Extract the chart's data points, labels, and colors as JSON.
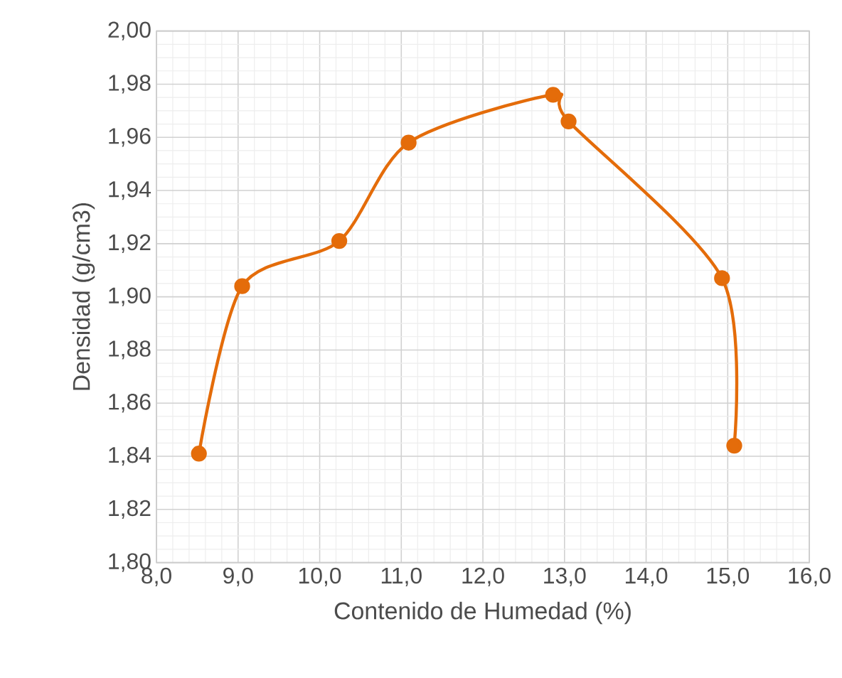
{
  "chart_data": {
    "type": "line",
    "xlabel": "Contenido de Humedad (%)",
    "ylabel": "Densidad (g/cm3)",
    "x": [
      8.52,
      9.05,
      10.24,
      11.09,
      12.86,
      13.05,
      14.93,
      15.08
    ],
    "series": [
      {
        "color": "#e46c0a",
        "values": [
          1.841,
          1.904,
          1.921,
          1.958,
          1.976,
          1.966,
          1.907,
          1.844
        ]
      }
    ],
    "xlim": [
      8,
      16
    ],
    "ylim": [
      1.8,
      2.0
    ],
    "xticks": [
      {
        "value": 8,
        "label": "8,0"
      },
      {
        "value": 9,
        "label": "9,0"
      },
      {
        "value": 10,
        "label": "10,0"
      },
      {
        "value": 11,
        "label": "11,0"
      },
      {
        "value": 12,
        "label": "12,0"
      },
      {
        "value": 13,
        "label": "13,0"
      },
      {
        "value": 14,
        "label": "14,0"
      },
      {
        "value": 15,
        "label": "15,0"
      },
      {
        "value": 16,
        "label": "16,0"
      }
    ],
    "yticks": [
      {
        "value": 1.8,
        "label": "1,80"
      },
      {
        "value": 1.82,
        "label": "1,82"
      },
      {
        "value": 1.84,
        "label": "1,84"
      },
      {
        "value": 1.86,
        "label": "1,86"
      },
      {
        "value": 1.88,
        "label": "1,88"
      },
      {
        "value": 1.9,
        "label": "1,90"
      },
      {
        "value": 1.92,
        "label": "1,92"
      },
      {
        "value": 1.94,
        "label": "1,94"
      },
      {
        "value": 1.96,
        "label": "1,96"
      },
      {
        "value": 1.98,
        "label": "1,98"
      },
      {
        "value": 2.0,
        "label": "2,00"
      }
    ],
    "grid": true,
    "marker": "circle",
    "line_style": "solid"
  }
}
